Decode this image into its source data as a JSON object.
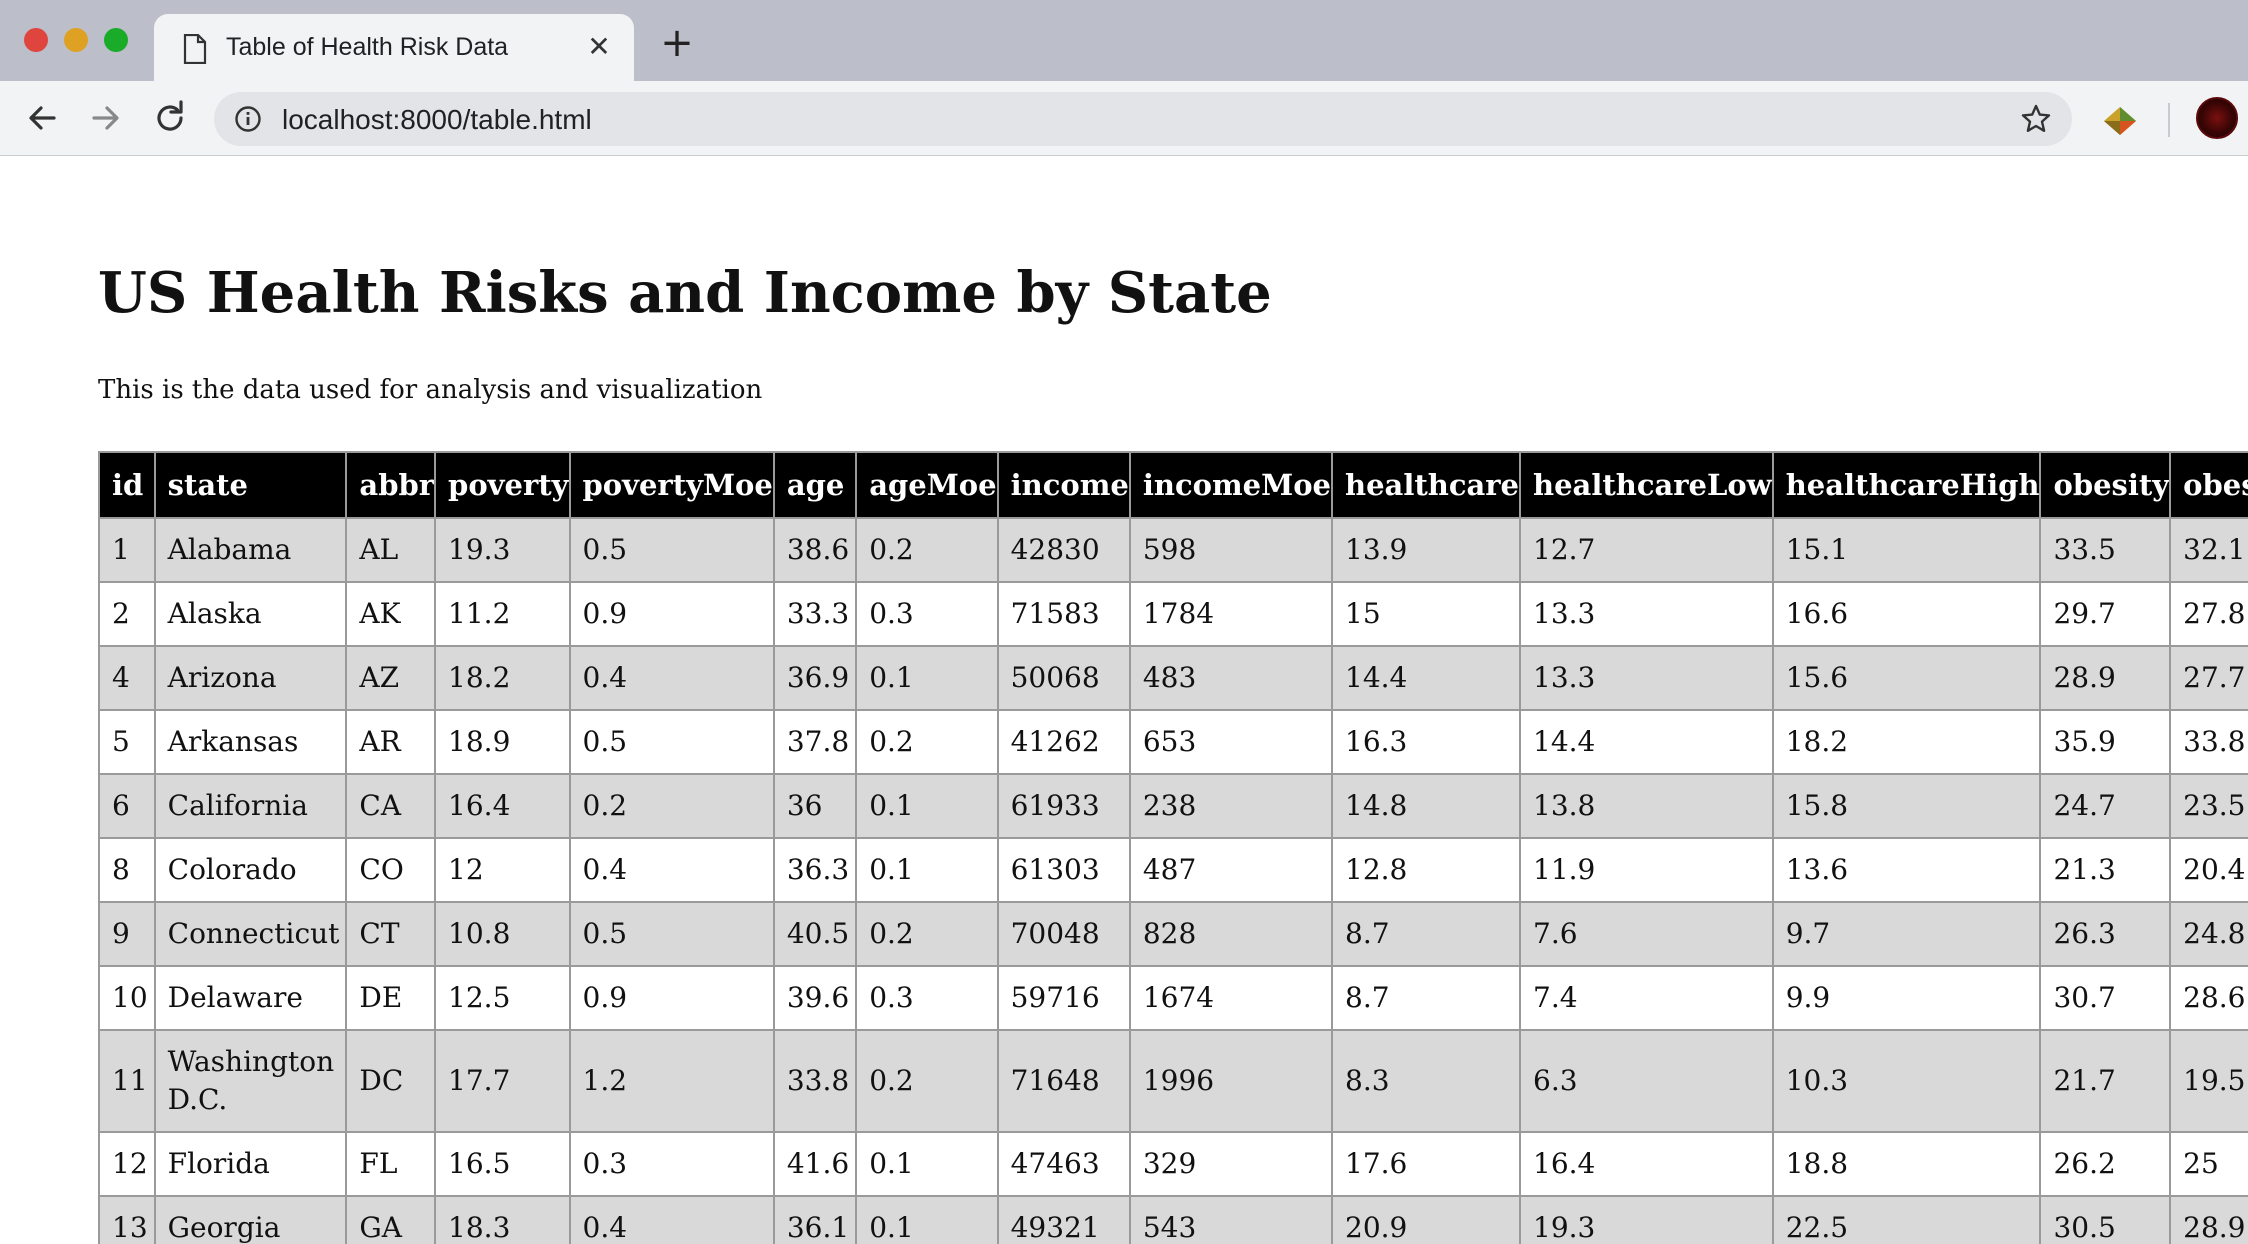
{
  "browser": {
    "tab_title": "Table of Health Risk Data",
    "tab_close_glyph": "✕",
    "new_tab_glyph": "+",
    "url": "localhost:8000/table.html",
    "icons": [
      "document-icon",
      "back-arrow-icon",
      "forward-arrow-icon",
      "reload-icon",
      "info-icon",
      "star-icon",
      "extension-icon",
      "avatar"
    ]
  },
  "page": {
    "title": "US Health Risks and Income by State",
    "description": "This is the data used for analysis and visualization"
  },
  "table": {
    "headers": [
      "id",
      "state",
      "abbr",
      "poverty",
      "povertyMoe",
      "age",
      "ageMoe",
      "income",
      "incomeMoe",
      "healthcare",
      "healthcareLow",
      "healthcareHigh",
      "obesity",
      "obesit"
    ],
    "rows": [
      [
        "1",
        "Alabama",
        "AL",
        "19.3",
        "0.5",
        "38.6",
        "0.2",
        "42830",
        "598",
        "13.9",
        "12.7",
        "15.1",
        "33.5",
        "32.1"
      ],
      [
        "2",
        "Alaska",
        "AK",
        "11.2",
        "0.9",
        "33.3",
        "0.3",
        "71583",
        "1784",
        "15",
        "13.3",
        "16.6",
        "29.7",
        "27.8"
      ],
      [
        "4",
        "Arizona",
        "AZ",
        "18.2",
        "0.4",
        "36.9",
        "0.1",
        "50068",
        "483",
        "14.4",
        "13.3",
        "15.6",
        "28.9",
        "27.7"
      ],
      [
        "5",
        "Arkansas",
        "AR",
        "18.9",
        "0.5",
        "37.8",
        "0.2",
        "41262",
        "653",
        "16.3",
        "14.4",
        "18.2",
        "35.9",
        "33.8"
      ],
      [
        "6",
        "California",
        "CA",
        "16.4",
        "0.2",
        "36",
        "0.1",
        "61933",
        "238",
        "14.8",
        "13.8",
        "15.8",
        "24.7",
        "23.5"
      ],
      [
        "8",
        "Colorado",
        "CO",
        "12",
        "0.4",
        "36.3",
        "0.1",
        "61303",
        "487",
        "12.8",
        "11.9",
        "13.6",
        "21.3",
        "20.4"
      ],
      [
        "9",
        "Connecticut",
        "CT",
        "10.8",
        "0.5",
        "40.5",
        "0.2",
        "70048",
        "828",
        "8.7",
        "7.6",
        "9.7",
        "26.3",
        "24.8"
      ],
      [
        "10",
        "Delaware",
        "DE",
        "12.5",
        "0.9",
        "39.6",
        "0.3",
        "59716",
        "1674",
        "8.7",
        "7.4",
        "9.9",
        "30.7",
        "28.6"
      ],
      [
        "11",
        "Washington D.C.",
        "DC",
        "17.7",
        "1.2",
        "33.8",
        "0.2",
        "71648",
        "1996",
        "8.3",
        "6.3",
        "10.3",
        "21.7",
        "19.5"
      ],
      [
        "12",
        "Florida",
        "FL",
        "16.5",
        "0.3",
        "41.6",
        "0.1",
        "47463",
        "329",
        "17.6",
        "16.4",
        "18.8",
        "26.2",
        "25"
      ],
      [
        "13",
        "Georgia",
        "GA",
        "18.3",
        "0.4",
        "36.1",
        "0.1",
        "49321",
        "543",
        "20.9",
        "19.3",
        "22.5",
        "30.5",
        "28.9"
      ]
    ]
  }
}
